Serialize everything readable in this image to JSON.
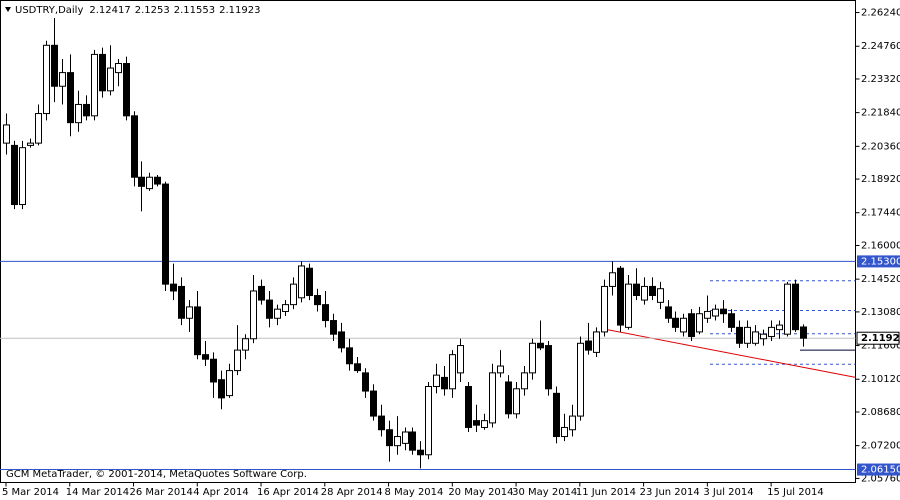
{
  "chart_data": {
    "type": "candlestick",
    "title": "USDTRY,Daily",
    "copyright": "GCM MetaTrader, © 2001-2014, MetaQuotes Software Corp.",
    "categories": [
      "5 Mar 2014",
      null,
      null,
      null,
      null,
      null,
      null,
      null,
      "14 Mar 2014",
      null,
      null,
      null,
      null,
      null,
      null,
      null,
      "26 Mar 2014",
      null,
      null,
      null,
      null,
      null,
      null,
      null,
      "4 Apr 2014",
      null,
      null,
      null,
      null,
      null,
      null,
      null,
      "16 Apr 2014",
      null,
      null,
      null,
      null,
      null,
      null,
      null,
      "28 Apr 2014",
      null,
      null,
      null,
      null,
      null,
      null,
      null,
      "8 May 2014",
      null,
      null,
      null,
      null,
      null,
      null,
      null,
      "20 May 2014",
      null,
      null,
      null,
      null,
      null,
      null,
      null,
      "30 May 2014",
      null,
      null,
      null,
      null,
      null,
      null,
      null,
      "11 Jun 2014",
      null,
      null,
      null,
      null,
      null,
      null,
      null,
      "23 Jun 2014",
      null,
      null,
      null,
      null,
      null,
      null,
      null,
      "3 Jul 2014",
      null,
      null,
      null,
      null,
      null,
      null,
      null,
      "15 Jul 2014",
      null,
      null,
      null,
      null
    ],
    "open": [
      2.205,
      2.204,
      2.178,
      2.204,
      2.205,
      2.218,
      2.248,
      2.23,
      2.236,
      2.214,
      2.222,
      2.217,
      2.244,
      2.228,
      2.236,
      2.24,
      2.217,
      2.19,
      2.185,
      2.19,
      2.187,
      2.143,
      2.142,
      2.128,
      2.133,
      2.112,
      2.11,
      2.101,
      2.094,
      2.105,
      2.114,
      2.119,
      2.142,
      2.136,
      2.128,
      2.131,
      2.134,
      2.137,
      2.15,
      2.138,
      2.134,
      2.127,
      2.122,
      2.115,
      2.108,
      2.104,
      2.096,
      2.085,
      2.079,
      2.072,
      2.073,
      2.078,
      2.07,
      2.068,
      2.098,
      2.102,
      2.097,
      2.104,
      2.098,
      2.083,
      2.08,
      2.082,
      2.104,
      2.1,
      2.086,
      2.097,
      2.104,
      2.117,
      2.116,
      2.095,
      2.076,
      2.079,
      2.085,
      2.118,
      2.113,
      2.122,
      2.142,
      2.15,
      2.124,
      2.143,
      2.136,
      2.142,
      2.135,
      2.133,
      2.128,
      2.122,
      2.13,
      2.122,
      2.128,
      2.129,
      2.132,
      2.13,
      2.124,
      2.117,
      2.117,
      2.119,
      2.12,
      2.123,
      2.121,
      2.143,
      2.12417
    ],
    "high": [
      2.218,
      2.206,
      2.206,
      2.207,
      2.222,
      2.25,
      2.26,
      2.242,
      2.244,
      2.228,
      2.226,
      2.246,
      2.247,
      2.248,
      2.242,
      2.243,
      2.219,
      2.197,
      2.192,
      2.191,
      2.188,
      2.152,
      2.146,
      2.136,
      2.14,
      2.118,
      2.113,
      2.105,
      2.108,
      2.125,
      2.121,
      2.147,
      2.145,
      2.14,
      2.134,
      2.136,
      2.146,
      2.153,
      2.152,
      2.141,
      2.14,
      2.13,
      2.126,
      2.119,
      2.111,
      2.106,
      2.099,
      2.09,
      2.083,
      2.085,
      2.08,
      2.08,
      2.074,
      2.1,
      2.108,
      2.107,
      2.114,
      2.119,
      2.1,
      2.09,
      2.086,
      2.108,
      2.114,
      2.103,
      2.1,
      2.107,
      2.119,
      2.127,
      2.118,
      2.098,
      2.086,
      2.09,
      2.12,
      2.126,
      2.124,
      2.145,
      2.153,
      2.151,
      2.147,
      2.15,
      2.146,
      2.146,
      2.144,
      2.136,
      2.131,
      2.13,
      2.132,
      2.133,
      2.138,
      2.134,
      2.136,
      2.132,
      2.127,
      2.127,
      2.125,
      2.123,
      2.127,
      2.127,
      2.144,
      2.145,
      2.1253
    ],
    "low": [
      2.2,
      2.176,
      2.176,
      2.203,
      2.204,
      2.215,
      2.223,
      2.222,
      2.208,
      2.21,
      2.215,
      2.215,
      2.225,
      2.226,
      2.23,
      2.215,
      2.186,
      2.175,
      2.184,
      2.186,
      2.14,
      2.136,
      2.125,
      2.122,
      2.11,
      2.107,
      2.093,
      2.088,
      2.093,
      2.103,
      2.11,
      2.117,
      2.134,
      2.124,
      2.125,
      2.129,
      2.132,
      2.135,
      2.136,
      2.131,
      2.124,
      2.118,
      2.113,
      2.105,
      2.104,
      2.093,
      2.083,
      2.076,
      2.065,
      2.068,
      2.07,
      2.068,
      2.062,
      2.066,
      2.095,
      2.094,
      2.093,
      2.1,
      2.078,
      2.078,
      2.079,
      2.08,
      2.102,
      2.084,
      2.084,
      2.094,
      2.101,
      2.114,
      2.094,
      2.073,
      2.074,
      2.076,
      2.083,
      2.112,
      2.111,
      2.12,
      2.138,
      2.122,
      2.123,
      2.136,
      2.134,
      2.136,
      2.132,
      2.126,
      2.122,
      2.12,
      2.118,
      2.121,
      2.126,
      2.127,
      2.126,
      2.122,
      2.115,
      2.115,
      2.116,
      2.116,
      2.118,
      2.119,
      2.12,
      2.122,
      2.11553
    ],
    "close": [
      2.213,
      2.178,
      2.203,
      2.205,
      2.218,
      2.248,
      2.23,
      2.236,
      2.214,
      2.222,
      2.217,
      2.244,
      2.228,
      2.238,
      2.24,
      2.217,
      2.19,
      2.186,
      2.19,
      2.187,
      2.143,
      2.14,
      2.128,
      2.133,
      2.112,
      2.11,
      2.1,
      2.093,
      2.105,
      2.114,
      2.119,
      2.14,
      2.136,
      2.128,
      2.132,
      2.134,
      2.143,
      2.151,
      2.138,
      2.134,
      2.127,
      2.121,
      2.115,
      2.108,
      2.105,
      2.096,
      2.085,
      2.079,
      2.072,
      2.076,
      2.078,
      2.07,
      2.068,
      2.098,
      2.103,
      2.097,
      2.112,
      2.116,
      2.08,
      2.081,
      2.083,
      2.104,
      2.107,
      2.086,
      2.097,
      2.104,
      2.117,
      2.115,
      2.097,
      2.076,
      2.08,
      2.085,
      2.117,
      2.114,
      2.122,
      2.142,
      2.148,
      2.125,
      2.143,
      2.138,
      2.142,
      2.138,
      2.141,
      2.128,
      2.124,
      2.128,
      2.12,
      2.13,
      2.131,
      2.132,
      2.13,
      2.124,
      2.117,
      2.124,
      2.122,
      2.121,
      2.124,
      2.125,
      2.143,
      2.123,
      2.11923
    ],
    "ylim": [
      2.0558,
      2.2677
    ],
    "yticks": [
      {
        "value": 2.2624,
        "label": "2.26240"
      },
      {
        "value": 2.2476,
        "label": "2.24760"
      },
      {
        "value": 2.2332,
        "label": "2.23320"
      },
      {
        "value": 2.2184,
        "label": "2.21840"
      },
      {
        "value": 2.2036,
        "label": "2.20360"
      },
      {
        "value": 2.1892,
        "label": "2.18920"
      },
      {
        "value": 2.1744,
        "label": "2.17440"
      },
      {
        "value": 2.16,
        "label": "2.16000"
      },
      {
        "value": 2.1452,
        "label": "2.14520"
      },
      {
        "value": 2.1308,
        "label": "2.13080"
      },
      {
        "value": 2.116,
        "label": "2.11600"
      },
      {
        "value": 2.1012,
        "label": "2.10120"
      },
      {
        "value": 2.0868,
        "label": "2.08680"
      },
      {
        "value": 2.072,
        "label": "2.07200"
      },
      {
        "value": 2.0576,
        "label": "2.05760"
      }
    ],
    "hlines": [
      {
        "value": 2.153,
        "label": "2.15300",
        "color": "#3355cc"
      },
      {
        "value": 2.0615,
        "label": "2.06150",
        "color": "#3355cc"
      }
    ],
    "levels": [
      {
        "value": 2.1445,
        "style": "dashed"
      },
      {
        "value": 2.1314,
        "style": "dashed"
      },
      {
        "value": 2.1212,
        "style": "dashed"
      },
      {
        "value": 2.114,
        "style": "solid"
      },
      {
        "value": 2.1078,
        "style": "dashed"
      }
    ],
    "trendline": {
      "start": 2.1233,
      "end": 2.102,
      "color": "#e00000"
    }
  }
}
